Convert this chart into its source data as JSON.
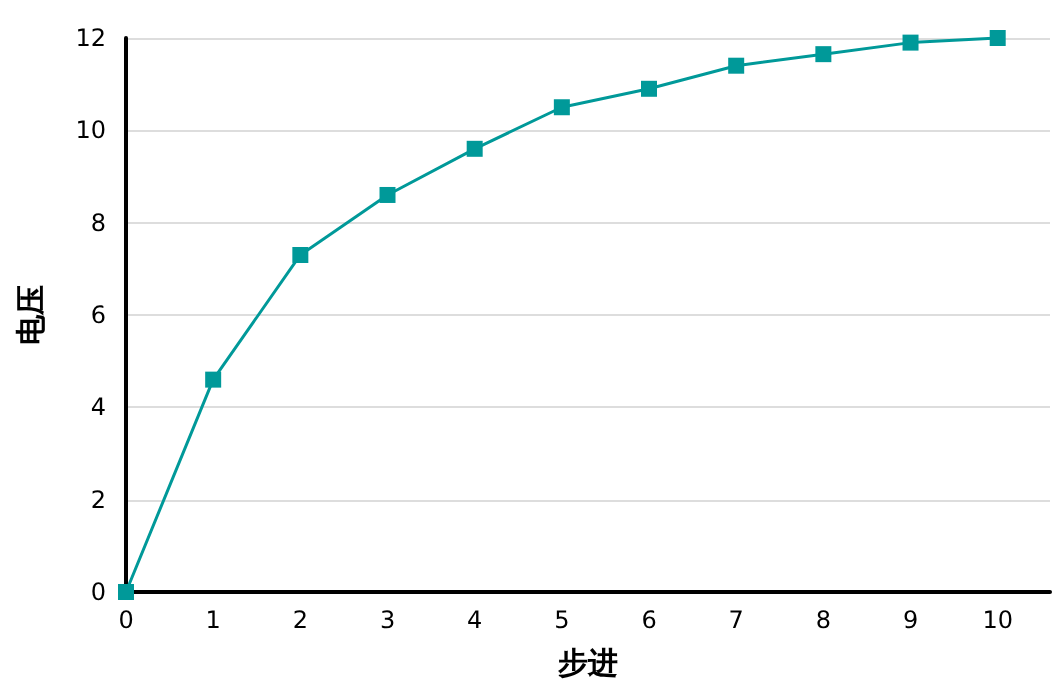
{
  "chart_data": {
    "type": "line",
    "xlabel": "步进",
    "ylabel": "电压",
    "x": [
      0,
      1,
      2,
      3,
      4,
      5,
      6,
      7,
      8,
      9,
      10
    ],
    "series": [
      {
        "color": "#009999",
        "values": [
          0,
          4.6,
          7.3,
          8.6,
          9.6,
          10.5,
          10.9,
          11.4,
          11.65,
          11.9,
          12
        ]
      }
    ],
    "xlim": [
      0,
      10.6
    ],
    "xticks": [
      0,
      1,
      2,
      3,
      4,
      5,
      6,
      7,
      8,
      9,
      10
    ],
    "ylim": [
      0,
      12
    ],
    "yticks": [
      0,
      2,
      4,
      6,
      8,
      10,
      12
    ],
    "grid": "y",
    "marker": "square",
    "line_style": "solid"
  }
}
